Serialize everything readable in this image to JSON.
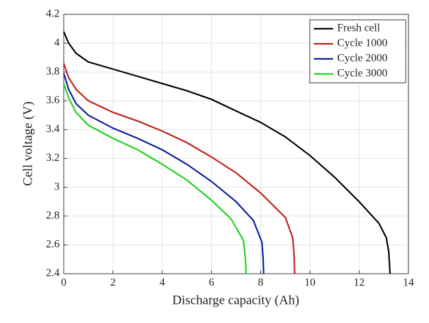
{
  "chart_data": {
    "type": "line",
    "x_label": "Discharge capacity (Ah)",
    "y_label": "Cell voltage (V)",
    "xlim": [
      0,
      14
    ],
    "xticks": [
      0,
      2,
      4,
      6,
      8,
      10,
      12,
      14
    ],
    "ylim": [
      2.4,
      4.2
    ],
    "yticks": [
      2.4,
      2.6,
      2.8,
      3,
      3.2,
      3.4,
      3.6,
      3.8,
      4,
      4.2
    ],
    "grid": true,
    "legend": "upper right",
    "series": [
      {
        "name": "Fresh cell",
        "color": "#000000",
        "x": [
          0,
          0.2,
          0.5,
          1,
          2,
          3,
          4,
          5,
          6,
          7,
          8,
          9,
          10,
          11,
          12,
          12.8,
          13.1,
          13.2,
          13.25
        ],
        "values": [
          4.08,
          4.0,
          3.93,
          3.87,
          3.82,
          3.77,
          3.72,
          3.67,
          3.61,
          3.53,
          3.45,
          3.35,
          3.22,
          3.07,
          2.9,
          2.75,
          2.65,
          2.55,
          2.4
        ]
      },
      {
        "name": "Cycle 1000",
        "color": "#c0201a",
        "x": [
          0,
          0.2,
          0.5,
          1,
          2,
          3,
          4,
          5,
          6,
          7,
          8,
          9,
          9.3,
          9.35,
          9.38
        ],
        "values": [
          3.86,
          3.76,
          3.68,
          3.6,
          3.52,
          3.46,
          3.39,
          3.31,
          3.21,
          3.1,
          2.96,
          2.79,
          2.65,
          2.55,
          2.4
        ]
      },
      {
        "name": "Cycle 2000",
        "color": "#0a1ea0",
        "x": [
          0,
          0.2,
          0.5,
          1,
          2,
          3,
          4,
          5,
          6,
          7,
          7.7,
          8.05,
          8.1,
          8.12
        ],
        "values": [
          3.79,
          3.68,
          3.58,
          3.5,
          3.41,
          3.34,
          3.26,
          3.16,
          3.04,
          2.9,
          2.77,
          2.62,
          2.5,
          2.4
        ]
      },
      {
        "name": "Cycle 3000",
        "color": "#1ed21e",
        "x": [
          0,
          0.2,
          0.5,
          1,
          2,
          3,
          4,
          5,
          6,
          6.8,
          7.3,
          7.38,
          7.4
        ],
        "values": [
          3.72,
          3.62,
          3.52,
          3.43,
          3.34,
          3.26,
          3.16,
          3.05,
          2.91,
          2.78,
          2.63,
          2.5,
          2.4
        ]
      }
    ]
  }
}
